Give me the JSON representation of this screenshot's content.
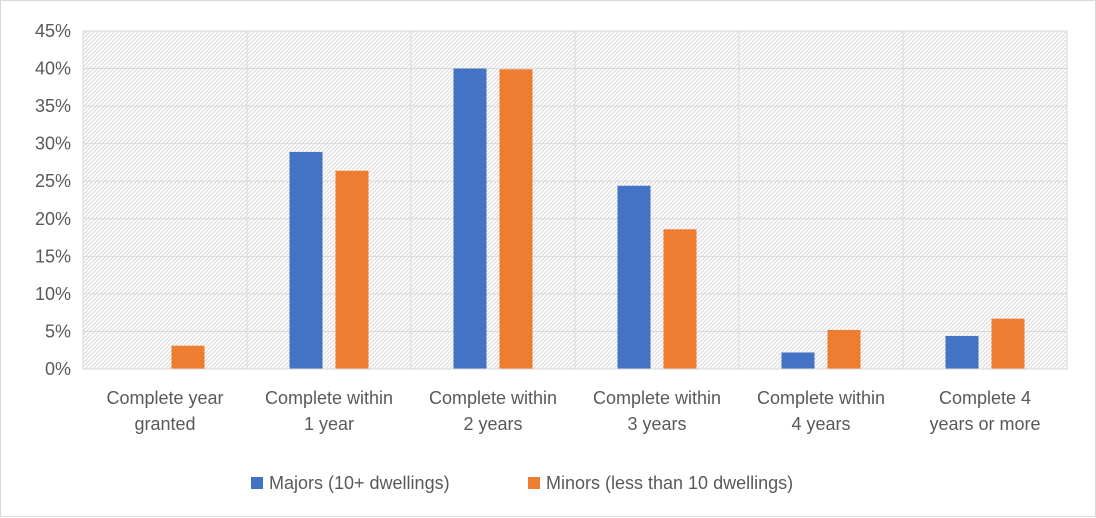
{
  "chart_data": {
    "type": "bar",
    "title": "",
    "xlabel": "",
    "ylabel": "",
    "ylim": [
      0,
      45
    ],
    "y_ticks": [
      "0%",
      "5%",
      "10%",
      "15%",
      "20%",
      "25%",
      "30%",
      "35%",
      "40%",
      "45%"
    ],
    "y_tick_values": [
      0,
      5,
      10,
      15,
      20,
      25,
      30,
      35,
      40,
      45
    ],
    "categories": [
      [
        "Complete year",
        "granted"
      ],
      [
        "Complete within",
        "1 year"
      ],
      [
        "Complete within",
        "2 years"
      ],
      [
        "Complete within",
        "3 years"
      ],
      [
        "Complete within",
        "4 years"
      ],
      [
        "Complete 4",
        "years or more"
      ]
    ],
    "series": [
      {
        "name": "Majors (10+ dwellings)",
        "color": "#4472c4",
        "values": [
          0,
          28.9,
          40,
          24.4,
          2.2,
          4.4
        ]
      },
      {
        "name": "Minors (less than 10 dwellings)",
        "color": "#ed7d31",
        "values": [
          3.1,
          26.4,
          39.9,
          18.6,
          5.2,
          6.7
        ]
      }
    ],
    "grid": true,
    "plot_background": "hatched",
    "legend_position": "bottom"
  }
}
